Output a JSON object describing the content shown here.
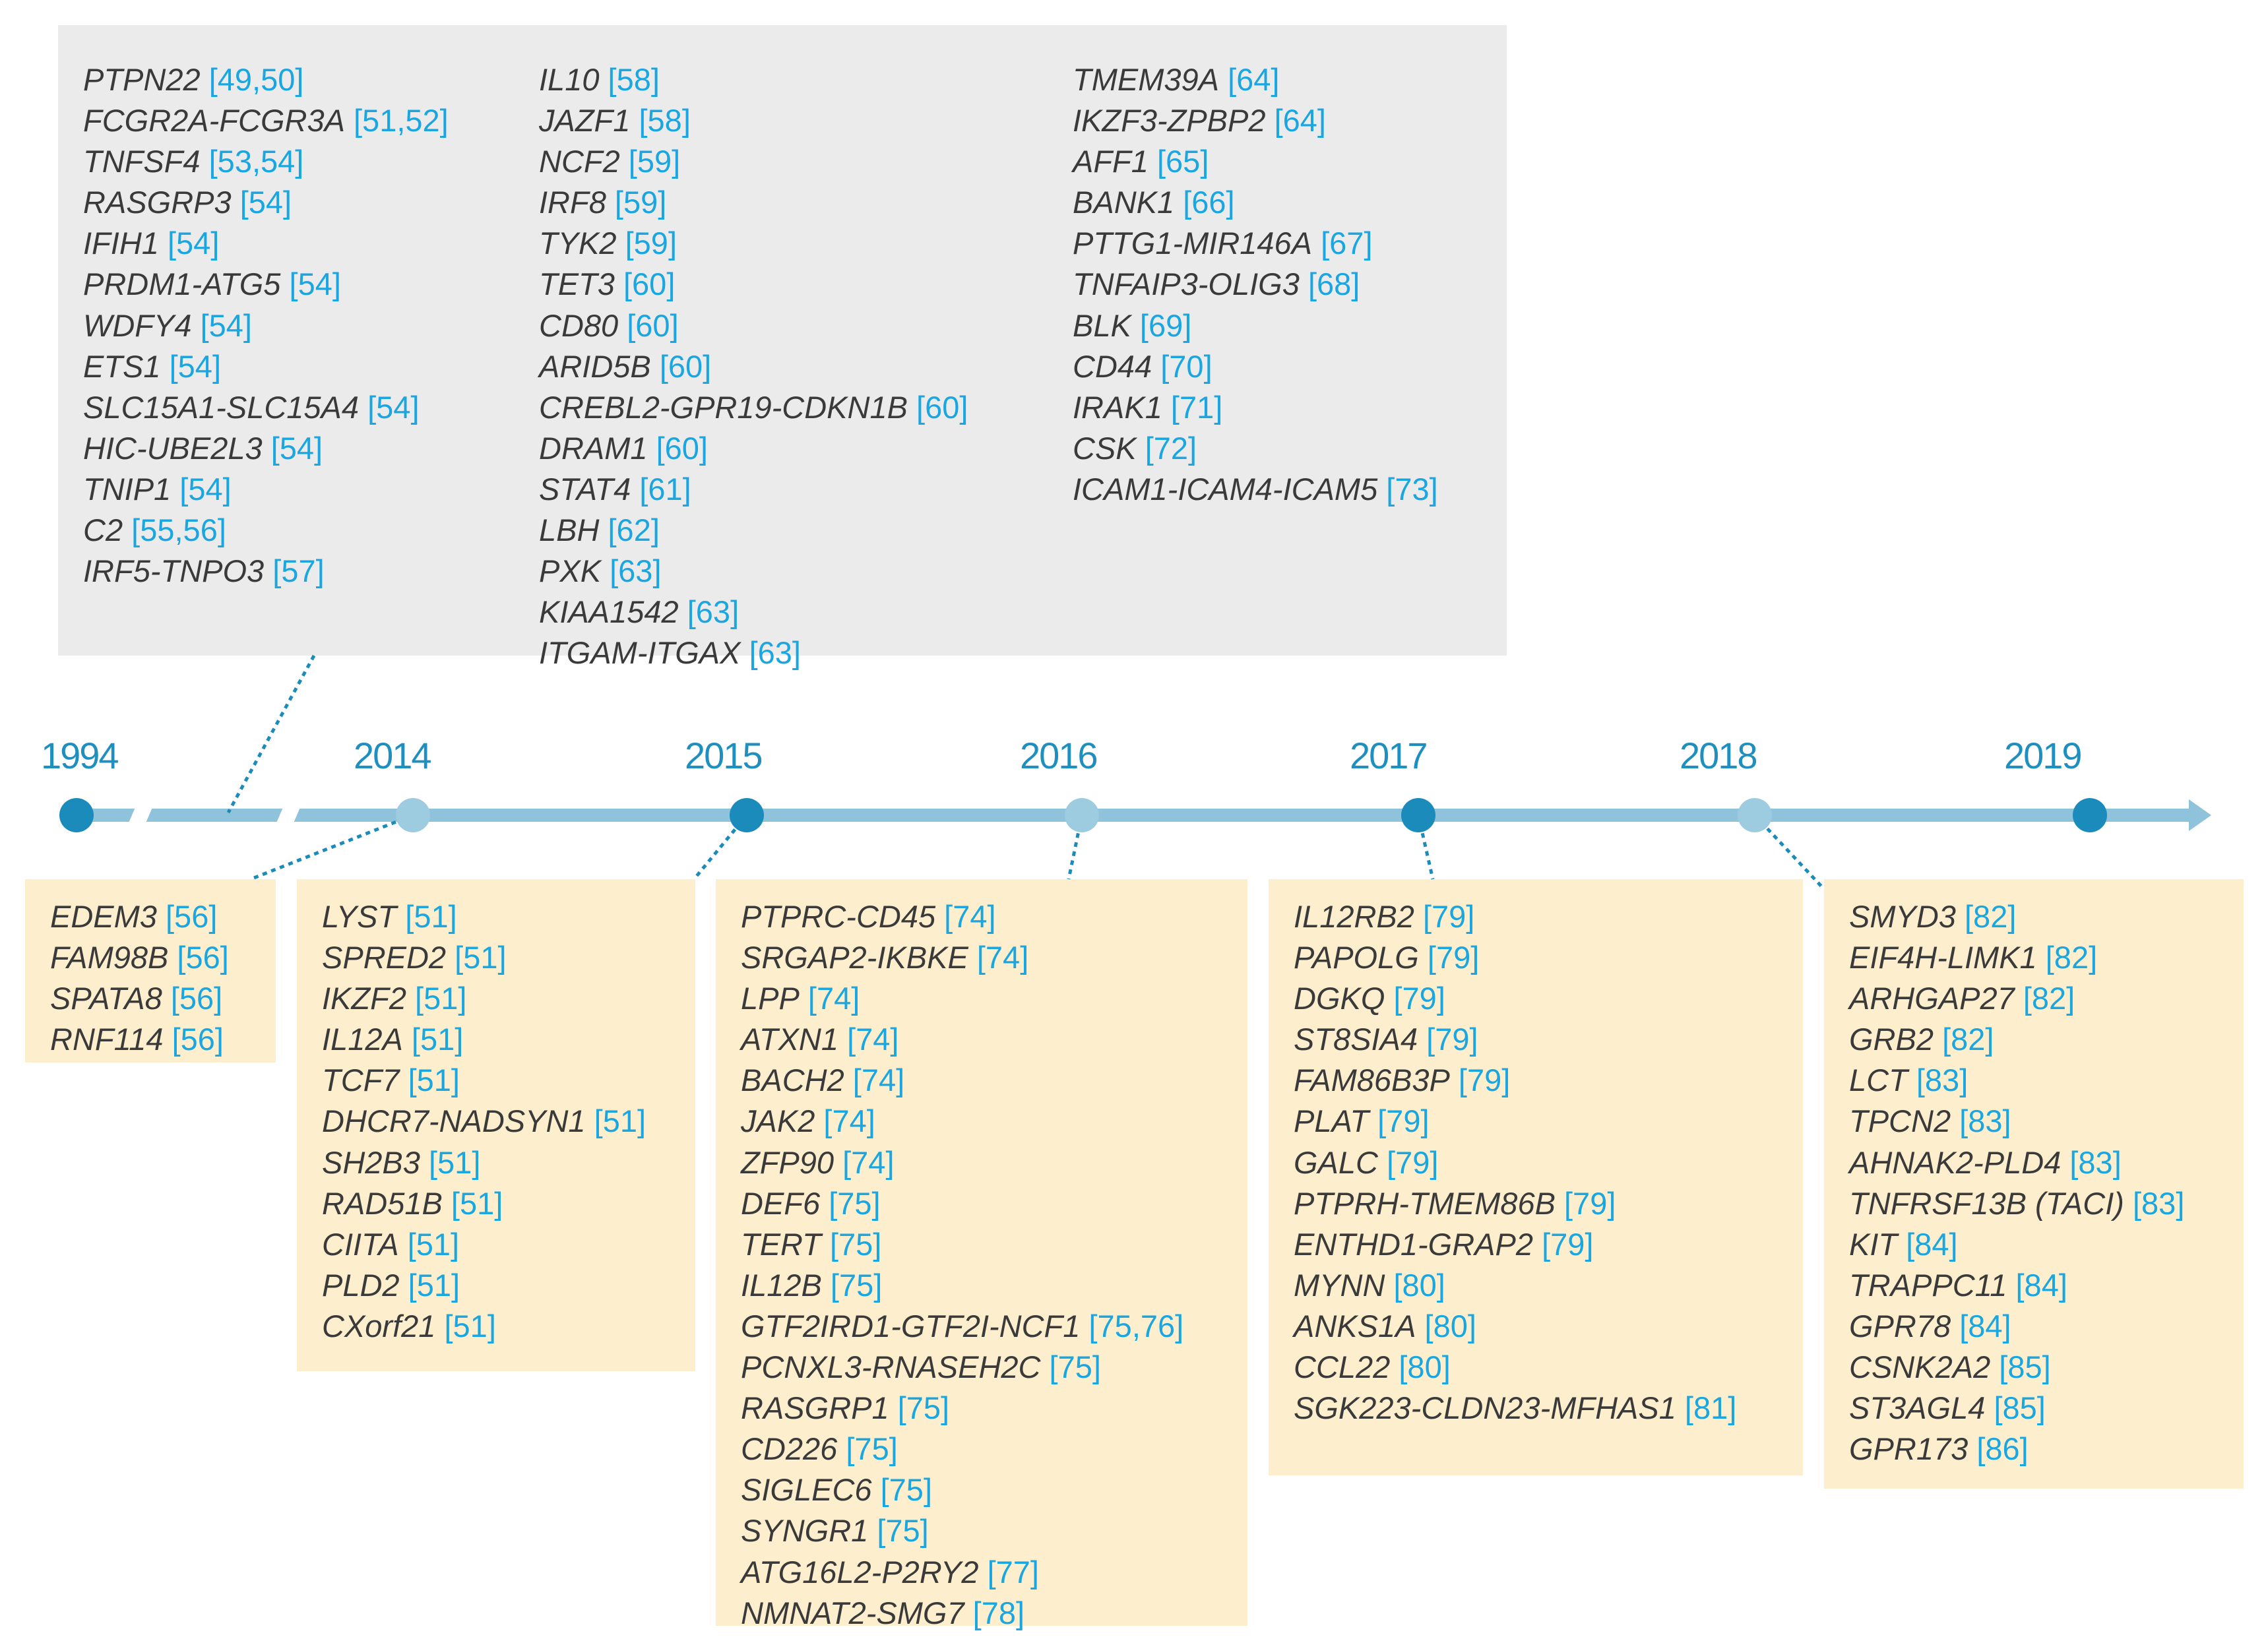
{
  "colors": {
    "gene_text": "#3a3a3a",
    "ref_text": "#1aa6e0",
    "timeline": "#8fc3dc",
    "milestone_dark": "#1b8bbb",
    "milestone_light": "#9dcbe0",
    "year_text": "#1e8fbf",
    "box_gray": "#ebebeb",
    "box_tan": "#fdefcd"
  },
  "timeline": {
    "years": [
      "1994",
      "2014",
      "2015",
      "2016",
      "2017",
      "2018",
      "2019"
    ]
  },
  "groups": {
    "g1994": {
      "columns": [
        [
          {
            "gene": "PTPN22",
            "ref": "[49,50]"
          },
          {
            "gene": "FCGR2A-FCGR3A",
            "ref": "[51,52]"
          },
          {
            "gene": "TNFSF4",
            "ref": "[53,54]"
          },
          {
            "gene": "RASGRP3",
            "ref": "[54]"
          },
          {
            "gene": "IFIH1",
            "ref": "[54]"
          },
          {
            "gene": "PRDM1-ATG5",
            "ref": "[54]"
          },
          {
            "gene": "WDFY4",
            "ref": "[54]"
          },
          {
            "gene": "ETS1",
            "ref": "[54]"
          },
          {
            "gene": "SLC15A1-SLC15A4",
            "ref": "[54]"
          },
          {
            "gene": "HIC-UBE2L3",
            "ref": "[54]"
          },
          {
            "gene": "TNIP1",
            "ref": "[54]"
          },
          {
            "gene": "C2",
            "ref": "[55,56]"
          },
          {
            "gene": "IRF5-TNPO3",
            "ref": "[57]"
          }
        ],
        [
          {
            "gene": "IL10",
            "ref": "[58]"
          },
          {
            "gene": "JAZF1",
            "ref": "[58]"
          },
          {
            "gene": "NCF2",
            "ref": "[59]"
          },
          {
            "gene": "IRF8",
            "ref": "[59]"
          },
          {
            "gene": "TYK2",
            "ref": "[59]"
          },
          {
            "gene": "TET3",
            "ref": "[60]"
          },
          {
            "gene": "CD80",
            "ref": "[60]"
          },
          {
            "gene": "ARID5B",
            "ref": "[60]"
          },
          {
            "gene": "CREBL2-GPR19-CDKN1B",
            "ref": "[60]"
          },
          {
            "gene": "DRAM1",
            "ref": "[60]"
          },
          {
            "gene": "STAT4",
            "ref": "[61]"
          },
          {
            "gene": "LBH",
            "ref": "[62]"
          },
          {
            "gene": "PXK",
            "ref": "[63]"
          },
          {
            "gene": "KIAA1542",
            "ref": "[63]"
          },
          {
            "gene": "ITGAM-ITGAX",
            "ref": "[63]"
          }
        ],
        [
          {
            "gene": "TMEM39A",
            "ref": "[64]"
          },
          {
            "gene": "IKZF3-ZPBP2",
            "ref": "[64]"
          },
          {
            "gene": "AFF1",
            "ref": "[65]"
          },
          {
            "gene": "BANK1",
            "ref": "[66]"
          },
          {
            "gene": "PTTG1-MIR146A",
            "ref": "[67]"
          },
          {
            "gene": "TNFAIP3-OLIG3",
            "ref": "[68]"
          },
          {
            "gene": "BLK",
            "ref": "[69]"
          },
          {
            "gene": "CD44",
            "ref": "[70]"
          },
          {
            "gene": "IRAK1",
            "ref": "[71]"
          },
          {
            "gene": "CSK",
            "ref": "[72]"
          },
          {
            "gene": "ICAM1-ICAM4-ICAM5",
            "ref": "[73]"
          }
        ]
      ]
    },
    "g2014a": {
      "entries": [
        {
          "gene": "EDEM3",
          "ref": "[56]"
        },
        {
          "gene": "FAM98B",
          "ref": "[56]"
        },
        {
          "gene": "SPATA8",
          "ref": "[56]"
        },
        {
          "gene": "RNF114",
          "ref": "[56]"
        }
      ]
    },
    "g2014b": {
      "entries": [
        {
          "gene": "LYST",
          "ref": "[51]"
        },
        {
          "gene": "SPRED2",
          "ref": "[51]"
        },
        {
          "gene": "IKZF2",
          "ref": "[51]"
        },
        {
          "gene": "IL12A",
          "ref": "[51]"
        },
        {
          "gene": "TCF7",
          "ref": "[51]"
        },
        {
          "gene": "DHCR7-NADSYN1",
          "ref": "[51]"
        },
        {
          "gene": "SH2B3",
          "ref": "[51]"
        },
        {
          "gene": "RAD51B",
          "ref": "[51]"
        },
        {
          "gene": "CIITA",
          "ref": "[51]"
        },
        {
          "gene": "PLD2",
          "ref": "[51]"
        },
        {
          "gene": "CXorf21",
          "ref": "[51]"
        }
      ]
    },
    "g2016": {
      "entries": [
        {
          "gene": "PTPRC-CD45",
          "ref": "[74]"
        },
        {
          "gene": "SRGAP2-IKBKE",
          "ref": "[74]"
        },
        {
          "gene": "LPP",
          "ref": "[74]"
        },
        {
          "gene": "ATXN1",
          "ref": "[74]"
        },
        {
          "gene": "BACH2",
          "ref": "[74]"
        },
        {
          "gene": "JAK2",
          "ref": "[74]"
        },
        {
          "gene": "ZFP90",
          "ref": "[74]"
        },
        {
          "gene": "DEF6",
          "ref": "[75]"
        },
        {
          "gene": "TERT",
          "ref": "[75]"
        },
        {
          "gene": "IL12B",
          "ref": "[75]"
        },
        {
          "gene": "GTF2IRD1-GTF2I-NCF1",
          "ref": "[75,76]"
        },
        {
          "gene": "PCNXL3-RNASEH2C",
          "ref": "[75]"
        },
        {
          "gene": "RASGRP1",
          "ref": "[75]"
        },
        {
          "gene": "CD226",
          "ref": "[75]"
        },
        {
          "gene": "SIGLEC6",
          "ref": "[75]"
        },
        {
          "gene": "SYNGR1",
          "ref": "[75]"
        },
        {
          "gene": "ATG16L2-P2RY2",
          "ref": "[77]"
        },
        {
          "gene": "NMNAT2-SMG7",
          "ref": "[78]"
        }
      ]
    },
    "g2017": {
      "entries": [
        {
          "gene": "IL12RB2",
          "ref": "[79]"
        },
        {
          "gene": "PAPOLG",
          "ref": "[79]"
        },
        {
          "gene": "DGKQ",
          "ref": "[79]"
        },
        {
          "gene": "ST8SIA4",
          "ref": "[79]"
        },
        {
          "gene": "FAM86B3P",
          "ref": "[79]"
        },
        {
          "gene": "PLAT",
          "ref": "[79]"
        },
        {
          "gene": "GALC",
          "ref": "[79]"
        },
        {
          "gene": "PTPRH-TMEM86B",
          "ref": "[79]"
        },
        {
          "gene": "ENTHD1-GRAP2",
          "ref": "[79]"
        },
        {
          "gene": "MYNN",
          "ref": "[80]"
        },
        {
          "gene": "ANKS1A",
          "ref": "[80]"
        },
        {
          "gene": "CCL22",
          "ref": "[80]"
        },
        {
          "gene": "SGK223-CLDN23-MFHAS1",
          "ref": "[81]"
        }
      ]
    },
    "g2018": {
      "entries": [
        {
          "gene": "SMYD3",
          "ref": "[82]"
        },
        {
          "gene": "EIF4H-LIMK1",
          "ref": "[82]"
        },
        {
          "gene": "ARHGAP27",
          "ref": "[82]"
        },
        {
          "gene": "GRB2",
          "ref": "[82]"
        },
        {
          "gene": "LCT",
          "ref": "[83]"
        },
        {
          "gene": "TPCN2",
          "ref": "[83]"
        },
        {
          "gene": "AHNAK2-PLD4",
          "ref": "[83]"
        },
        {
          "gene": "TNFRSF13B (TACI)",
          "ref": "[83]"
        },
        {
          "gene": "KIT",
          "ref": "[84]"
        },
        {
          "gene": "TRAPPC11",
          "ref": "[84]"
        },
        {
          "gene": "GPR78",
          "ref": "[84]"
        },
        {
          "gene": "CSNK2A2",
          "ref": "[85]"
        },
        {
          "gene": "ST3AGL4",
          "ref": "[85]"
        },
        {
          "gene": "GPR173",
          "ref": "[86]"
        }
      ]
    }
  }
}
